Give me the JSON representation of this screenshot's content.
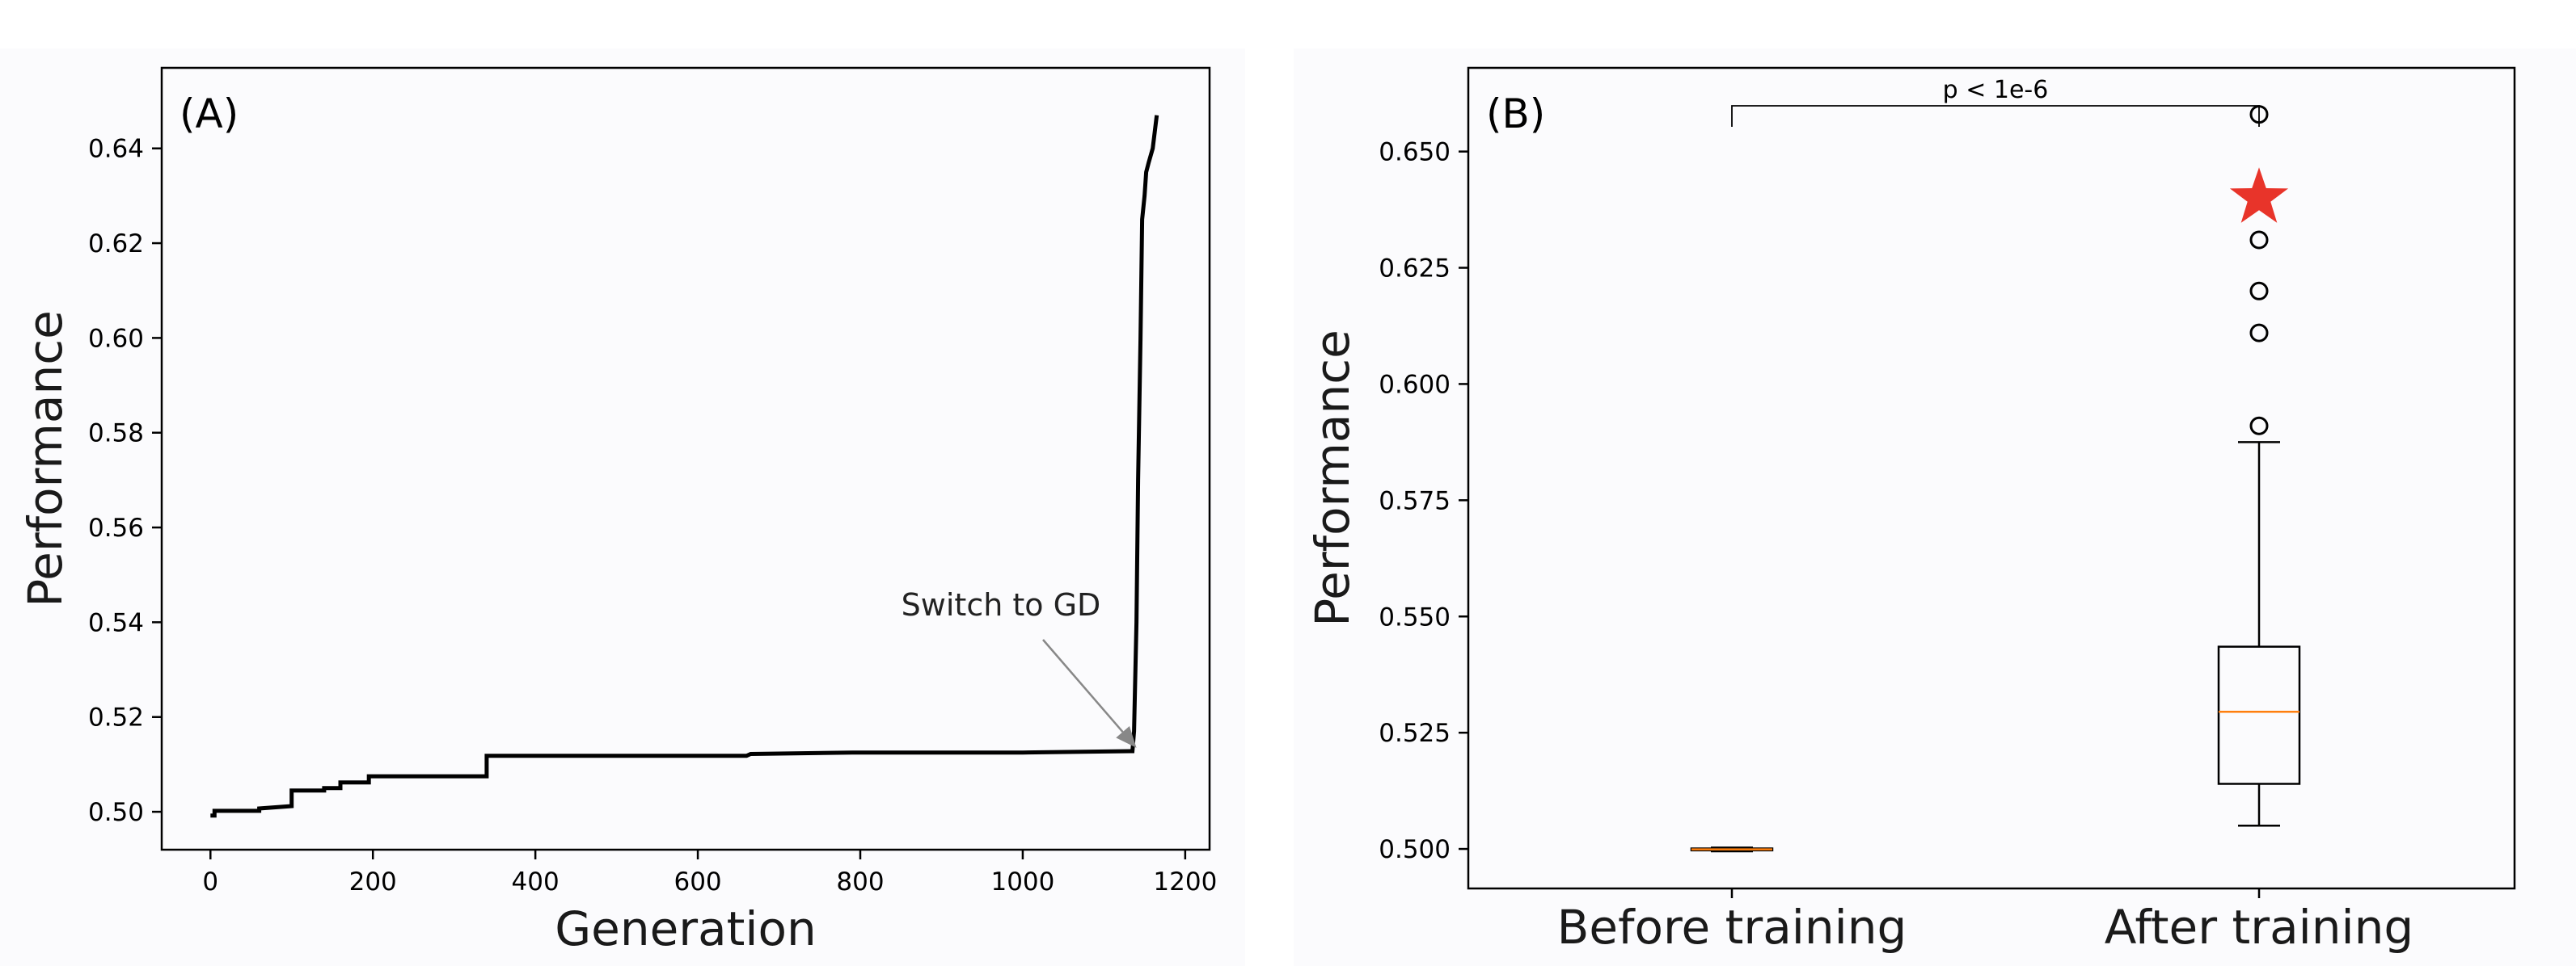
{
  "chart_data": [
    {
      "type": "line",
      "panel_label": "(A)",
      "xlabel": "Generation",
      "ylabel": "Performance",
      "xlim": [
        -60,
        1230
      ],
      "ylim": [
        0.492,
        0.657
      ],
      "xticks": [
        0,
        200,
        400,
        600,
        800,
        1000,
        1200
      ],
      "yticks": [
        0.5,
        0.52,
        0.54,
        0.56,
        0.58,
        0.6,
        0.62,
        0.64
      ],
      "ytick_labels": [
        "0.50",
        "0.52",
        "0.54",
        "0.56",
        "0.58",
        "0.60",
        "0.62",
        "0.64"
      ],
      "series": [
        {
          "color": "#000000",
          "x": [
            0,
            5,
            5,
            60,
            60,
            100,
            100,
            140,
            140,
            160,
            160,
            195,
            195,
            340,
            340,
            660,
            665,
            790,
            1000,
            1135,
            1137,
            1140,
            1142,
            1145,
            1147,
            1150,
            1152,
            1155,
            1160,
            1165
          ],
          "y": [
            0.4992,
            0.4992,
            0.5002,
            0.5002,
            0.5007,
            0.5012,
            0.5045,
            0.5045,
            0.505,
            0.505,
            0.5062,
            0.5062,
            0.5075,
            0.5075,
            0.5118,
            0.5118,
            0.5122,
            0.5125,
            0.5125,
            0.5128,
            0.517,
            0.54,
            0.57,
            0.6,
            0.625,
            0.63,
            0.635,
            0.637,
            0.64,
            0.647
          ]
        }
      ],
      "annotation": {
        "text": "Switch to GD",
        "x": 1140,
        "y": 0.5135
      }
    },
    {
      "type": "box",
      "panel_label": "(B)",
      "xlabel": "",
      "ylabel": "Performance",
      "ylim": [
        0.4915,
        0.668
      ],
      "yticks": [
        0.5,
        0.525,
        0.55,
        0.575,
        0.6,
        0.625,
        0.65
      ],
      "ytick_labels": [
        "0.500",
        "0.525",
        "0.550",
        "0.575",
        "0.600",
        "0.625",
        "0.650"
      ],
      "categories": [
        "Before training",
        "After training"
      ],
      "boxes": [
        {
          "whisker_low": 0.4995,
          "q1": 0.4997,
          "median": 0.4999,
          "q3": 0.5001,
          "whisker_high": 0.5003,
          "outliers": []
        },
        {
          "whisker_low": 0.505,
          "q1": 0.514,
          "median": 0.5295,
          "q3": 0.5435,
          "whisker_high": 0.5875,
          "outliers": [
            0.591,
            0.611,
            0.62,
            0.631,
            0.658
          ]
        }
      ],
      "median_color": "#ff7f0e",
      "marker": {
        "category": "After training",
        "y": 0.64,
        "color": "#e8342a"
      },
      "significance": {
        "text": "p < 1e-6"
      }
    }
  ]
}
